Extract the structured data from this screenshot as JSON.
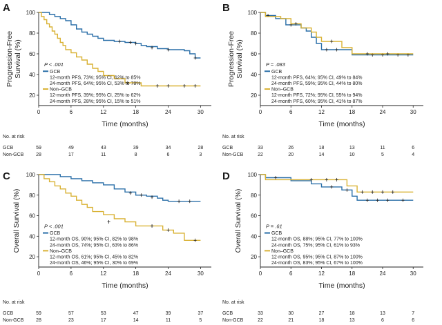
{
  "colors": {
    "gcb": "#2a6fa8",
    "non_gcb": "#d9b235",
    "axis": "#222222"
  },
  "chart_data": [
    {
      "id": "A",
      "type": "line",
      "panel_label": "A",
      "ylabel_lines": [
        "Progression-Free",
        "Survival (%)"
      ],
      "xlabel": "Time (months)",
      "xlim": [
        0,
        32
      ],
      "ylim": [
        10,
        100
      ],
      "xticks": [
        0,
        6,
        12,
        18,
        24,
        30
      ],
      "yticks": [
        20,
        40,
        60,
        80,
        100
      ],
      "pvalue": "P < .001",
      "series": [
        {
          "name": "GCB",
          "color": "#2a6fa8",
          "legend_lines": [
            "12-month PFS, 73%; 95% CI, 62% to 85%",
            "24-month PFS, 64%; 95% CI, 53% to 78%"
          ],
          "steps": [
            [
              0,
              100
            ],
            [
              2,
              98
            ],
            [
              3,
              96
            ],
            [
              4,
              94
            ],
            [
              5,
              92
            ],
            [
              6,
              88
            ],
            [
              7,
              84
            ],
            [
              8,
              81
            ],
            [
              9,
              79
            ],
            [
              10,
              77
            ],
            [
              11,
              75
            ],
            [
              12,
              73
            ],
            [
              14,
              72
            ],
            [
              16,
              71
            ],
            [
              18,
              70
            ],
            [
              19,
              68
            ],
            [
              20,
              67
            ],
            [
              22,
              65
            ],
            [
              24,
              64
            ],
            [
              27,
              63
            ],
            [
              28,
              60
            ],
            [
              29,
              56
            ],
            [
              30,
              56
            ]
          ],
          "censors": [
            [
              15,
              72
            ],
            [
              17,
              71
            ],
            [
              18,
              70
            ],
            [
              21,
              66
            ],
            [
              24,
              64
            ],
            [
              29,
              56
            ]
          ]
        },
        {
          "name": "Non–GCB",
          "color": "#d9b235",
          "legend_lines": [
            "12-month PFS, 39%; 95% CI, 25% to 62%",
            "24-month PFS, 28%; 95% CI, 15% to 51%"
          ],
          "steps": [
            [
              0,
              100
            ],
            [
              0.5,
              96
            ],
            [
              1,
              93
            ],
            [
              1.5,
              89
            ],
            [
              2,
              86
            ],
            [
              2.5,
              82
            ],
            [
              3,
              79
            ],
            [
              3.5,
              75
            ],
            [
              4,
              71
            ],
            [
              4.5,
              68
            ],
            [
              5,
              64
            ],
            [
              6,
              61
            ],
            [
              7,
              57
            ],
            [
              8,
              54
            ],
            [
              9,
              50
            ],
            [
              10,
              46
            ],
            [
              11,
              43
            ],
            [
              12,
              39
            ],
            [
              14,
              36
            ],
            [
              16,
              32
            ],
            [
              19,
              29
            ],
            [
              30,
              29
            ]
          ],
          "censors": [
            [
              16.5,
              32
            ],
            [
              22,
              29
            ],
            [
              24,
              29
            ],
            [
              27,
              29
            ],
            [
              29,
              29
            ]
          ]
        }
      ],
      "at_risk": {
        "title": "No. at risk",
        "rows": [
          {
            "label": "GCB",
            "values": [
              "59",
              "49",
              "43",
              "39",
              "34",
              "28"
            ]
          },
          {
            "label": "Non-GCB",
            "values": [
              "28",
              "17",
              "11",
              "8",
              "6",
              "3"
            ]
          }
        ]
      }
    },
    {
      "id": "B",
      "type": "line",
      "panel_label": "B",
      "ylabel_lines": [
        "Progression-Free",
        "Survival (%)"
      ],
      "xlabel": "Time (months)",
      "xlim": [
        0,
        32
      ],
      "ylim": [
        10,
        100
      ],
      "xticks": [
        0,
        6,
        12,
        18,
        24,
        30
      ],
      "yticks": [
        20,
        40,
        60,
        80,
        100
      ],
      "pvalue": "P = .083",
      "series": [
        {
          "name": "GCB",
          "color": "#2a6fa8",
          "legend_lines": [
            "12-month PFS, 64%; 95% CI, 49% to 84%",
            "24-month PFS, 59%; 95% CI, 44% to 80%"
          ],
          "steps": [
            [
              0,
              100
            ],
            [
              1,
              97
            ],
            [
              3,
              94
            ],
            [
              5,
              88
            ],
            [
              8,
              85
            ],
            [
              9,
              82
            ],
            [
              10,
              76
            ],
            [
              11,
              70
            ],
            [
              12,
              64
            ],
            [
              17,
              64
            ],
            [
              18,
              59
            ],
            [
              30,
              59
            ]
          ],
          "censors": [
            [
              1.5,
              97
            ],
            [
              6,
              88
            ],
            [
              13,
              64
            ],
            [
              15,
              64
            ],
            [
              22,
              59
            ],
            [
              24,
              59
            ],
            [
              27,
              59
            ],
            [
              29,
              59
            ]
          ]
        },
        {
          "name": "Non–GCB",
          "color": "#d9b235",
          "legend_lines": [
            "12-month PFS, 72%; 95% CI, 55% to 94%",
            "24-month PFS, 60%; 95% CI, 41% to 87%"
          ],
          "steps": [
            [
              0,
              100
            ],
            [
              1,
              96
            ],
            [
              4,
              94
            ],
            [
              6,
              89
            ],
            [
              8,
              85
            ],
            [
              10,
              81
            ],
            [
              11,
              76
            ],
            [
              12,
              72
            ],
            [
              16,
              66
            ],
            [
              18,
              60
            ],
            [
              30,
              60
            ]
          ],
          "censors": [
            [
              7,
              89
            ],
            [
              14,
              72
            ],
            [
              21,
              60
            ],
            [
              25,
              60
            ]
          ]
        }
      ],
      "at_risk": {
        "title": "No. at risk",
        "rows": [
          {
            "label": "GCB",
            "values": [
              "33",
              "26",
              "18",
              "13",
              "11",
              "6"
            ]
          },
          {
            "label": "Non-GCB",
            "values": [
              "22",
              "20",
              "14",
              "10",
              "5",
              "4"
            ]
          }
        ]
      }
    },
    {
      "id": "C",
      "type": "line",
      "panel_label": "C",
      "ylabel_lines": [
        "Overall Survival (%)"
      ],
      "xlabel": "Time (months)",
      "xlim": [
        0,
        32
      ],
      "ylim": [
        10,
        100
      ],
      "xticks": [
        0,
        6,
        12,
        18,
        24,
        30
      ],
      "yticks": [
        20,
        40,
        60,
        80,
        100
      ],
      "pvalue": "P < .001",
      "series": [
        {
          "name": "GCB",
          "color": "#2a6fa8",
          "legend_lines": [
            "12-month OS, 90%; 95% CI, 82% to 98%",
            "24-month OS, 74%; 95% CI, 63% to 86%"
          ],
          "steps": [
            [
              0,
              100
            ],
            [
              4,
              98
            ],
            [
              6,
              96
            ],
            [
              8,
              94
            ],
            [
              10,
              92
            ],
            [
              12,
              90
            ],
            [
              14,
              86
            ],
            [
              16,
              83
            ],
            [
              18,
              80
            ],
            [
              20,
              79
            ],
            [
              22,
              77
            ],
            [
              23,
              75
            ],
            [
              24,
              74
            ],
            [
              30,
              74
            ]
          ],
          "censors": [
            [
              17,
              82
            ],
            [
              19,
              80
            ],
            [
              21,
              78
            ],
            [
              26,
              74
            ],
            [
              28,
              74
            ]
          ]
        },
        {
          "name": "Non–GCB",
          "color": "#d9b235",
          "legend_lines": [
            "12-month OS, 61%; 95% CI, 45% to 82%",
            "24-month OS, 46%; 95% CI, 30% to 69%"
          ],
          "steps": [
            [
              0,
              100
            ],
            [
              1,
              96
            ],
            [
              2,
              93
            ],
            [
              3,
              89
            ],
            [
              4,
              86
            ],
            [
              5,
              82
            ],
            [
              6,
              79
            ],
            [
              7,
              75
            ],
            [
              8,
              71
            ],
            [
              9,
              68
            ],
            [
              10,
              64
            ],
            [
              12,
              61
            ],
            [
              14,
              57
            ],
            [
              16,
              54
            ],
            [
              18,
              50
            ],
            [
              22,
              50
            ],
            [
              23,
              46
            ],
            [
              25,
              43
            ],
            [
              27,
              36
            ],
            [
              30,
              36
            ]
          ],
          "censors": [
            [
              13,
              54
            ],
            [
              21,
              50
            ],
            [
              24,
              46
            ],
            [
              29,
              36
            ]
          ]
        }
      ],
      "at_risk": {
        "title": "No. at risk",
        "rows": [
          {
            "label": "GCB",
            "values": [
              "59",
              "57",
              "53",
              "47",
              "39",
              "37"
            ]
          },
          {
            "label": "Non-GCB",
            "values": [
              "28",
              "23",
              "17",
              "14",
              "11",
              "5"
            ]
          }
        ]
      }
    },
    {
      "id": "D",
      "type": "line",
      "panel_label": "D",
      "ylabel_lines": [
        "Overall Survival (%)"
      ],
      "xlabel": "Time (months)",
      "xlim": [
        0,
        32
      ],
      "ylim": [
        10,
        100
      ],
      "xticks": [
        0,
        6,
        12,
        18,
        24,
        30
      ],
      "yticks": [
        20,
        40,
        60,
        80,
        100
      ],
      "pvalue": "P = .61",
      "series": [
        {
          "name": "GCB",
          "color": "#2a6fa8",
          "legend_lines": [
            "12-month OS, 88%; 95% CI, 77% to 100%",
            "24-month OS, 75%; 95% CI, 61% to 93%"
          ],
          "steps": [
            [
              0,
              100
            ],
            [
              1,
              97
            ],
            [
              6,
              94
            ],
            [
              10,
              91
            ],
            [
              12,
              88
            ],
            [
              16,
              85
            ],
            [
              18,
              79
            ],
            [
              19,
              75
            ],
            [
              30,
              75
            ]
          ],
          "censors": [
            [
              3,
              97
            ],
            [
              14,
              88
            ],
            [
              17,
              85
            ],
            [
              21,
              75
            ],
            [
              23,
              75
            ],
            [
              25,
              75
            ],
            [
              28,
              75
            ]
          ]
        },
        {
          "name": "Non–GCB",
          "color": "#d9b235",
          "legend_lines": [
            "12-month OS, 95%; 95% CI, 87% to 100%",
            "24-month OS, 83%; 95% CI, 67% to 100%"
          ],
          "steps": [
            [
              0,
              100
            ],
            [
              1,
              95
            ],
            [
              17,
              89
            ],
            [
              19,
              83
            ],
            [
              30,
              83
            ]
          ],
          "censors": [
            [
              10,
              95
            ],
            [
              13,
              95
            ],
            [
              15,
              95
            ],
            [
              20,
              83
            ],
            [
              22,
              83
            ],
            [
              24,
              83
            ],
            [
              26,
              83
            ]
          ]
        }
      ],
      "at_risk": {
        "title": "No. at risk",
        "rows": [
          {
            "label": "GCB",
            "values": [
              "33",
              "30",
              "27",
              "18",
              "13",
              "7"
            ]
          },
          {
            "label": "Non-GCB",
            "values": [
              "22",
              "21",
              "18",
              "13",
              "6",
              "6"
            ]
          }
        ]
      }
    }
  ]
}
